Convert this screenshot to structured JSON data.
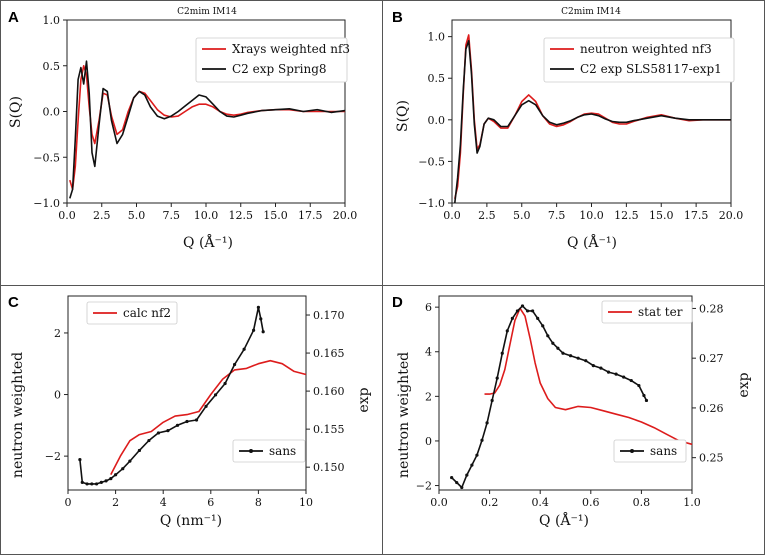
{
  "panels": [
    {
      "id": "A",
      "title": "C2mim IM14",
      "xlabel": "Q (Å⁻¹)",
      "ylabel": "S(Q)",
      "y2label": "",
      "legend_position": "upper-right"
    },
    {
      "id": "B",
      "title": "C2mim IM14",
      "xlabel": "Q (Å⁻¹)",
      "ylabel": "S(Q)",
      "y2label": "",
      "legend_position": "upper-right"
    },
    {
      "id": "C",
      "title": "",
      "xlabel": "Q (nm⁻¹)",
      "ylabel": "neutron weighted",
      "y2label": "exp",
      "legend_position": "upper-left and lower-right"
    },
    {
      "id": "D",
      "title": "",
      "xlabel": "Q (Å⁻¹)",
      "ylabel": "neutron weighted",
      "y2label": "exp",
      "legend_position": "upper-right and lower-right"
    }
  ],
  "colors": {
    "model": "#dd1c1c",
    "exp": "#111111",
    "frame": "#333333"
  },
  "chart_data": [
    {
      "type": "line",
      "panel": "A",
      "title": "C2mim IM14",
      "xlim": [
        0,
        20
      ],
      "ylim": [
        -1,
        1
      ],
      "xticks": [
        "0.0",
        "2.5",
        "5.0",
        "7.5",
        "10.0",
        "12.5",
        "15.0",
        "17.5",
        "20.0"
      ],
      "xtick_values": [
        0,
        2.5,
        5,
        7.5,
        10,
        12.5,
        15,
        17.5,
        20
      ],
      "yticks": [
        "−1.0",
        "−0.5",
        "0.0",
        "0.5",
        "1.0"
      ],
      "ytick_values": [
        -1,
        -0.5,
        0,
        0.5,
        1
      ],
      "series": [
        {
          "name": "Xrays weighted nf3",
          "color": "red",
          "x": [
            0.2,
            0.4,
            0.6,
            0.8,
            1.0,
            1.2,
            1.4,
            1.6,
            1.8,
            2.0,
            2.3,
            2.6,
            2.9,
            3.2,
            3.6,
            4.0,
            4.4,
            4.8,
            5.2,
            5.6,
            6.0,
            6.5,
            7.0,
            7.5,
            8.0,
            8.5,
            9.0,
            9.5,
            10.0,
            10.5,
            11.0,
            11.5,
            12.0,
            12.5,
            13,
            14,
            15,
            16,
            17,
            18,
            19,
            20
          ],
          "y": [
            -0.75,
            -0.85,
            -0.6,
            -0.1,
            0.35,
            0.5,
            0.4,
            0.05,
            -0.25,
            -0.35,
            -0.1,
            0.2,
            0.18,
            -0.05,
            -0.25,
            -0.2,
            0.0,
            0.15,
            0.22,
            0.2,
            0.12,
            0.02,
            -0.04,
            -0.06,
            -0.05,
            0.0,
            0.05,
            0.08,
            0.08,
            0.05,
            0.0,
            -0.03,
            -0.04,
            -0.03,
            -0.01,
            0.01,
            0.02,
            0.02,
            0.0,
            0.0,
            0.0,
            0.0
          ]
        },
        {
          "name": "C2 exp Spring8",
          "color": "black",
          "x": [
            0.2,
            0.4,
            0.6,
            0.8,
            1.0,
            1.2,
            1.4,
            1.6,
            1.8,
            2.0,
            2.3,
            2.6,
            2.9,
            3.2,
            3.6,
            4.0,
            4.4,
            4.8,
            5.2,
            5.6,
            6.0,
            6.5,
            7.0,
            7.5,
            8.0,
            8.5,
            9.0,
            9.5,
            10.0,
            10.5,
            11.0,
            11.5,
            12.0,
            12.5,
            13,
            14,
            15,
            16,
            17,
            18,
            19,
            20
          ],
          "y": [
            -0.95,
            -0.85,
            -0.3,
            0.35,
            0.48,
            0.3,
            0.55,
            0.2,
            -0.45,
            -0.6,
            -0.15,
            0.25,
            0.22,
            -0.1,
            -0.35,
            -0.25,
            -0.05,
            0.15,
            0.22,
            0.18,
            0.05,
            -0.05,
            -0.08,
            -0.05,
            0.0,
            0.06,
            0.12,
            0.18,
            0.16,
            0.08,
            0.0,
            -0.05,
            -0.06,
            -0.04,
            -0.02,
            0.01,
            0.02,
            0.03,
            0.0,
            0.02,
            -0.01,
            0.01
          ]
        }
      ]
    },
    {
      "type": "line",
      "panel": "B",
      "title": "C2mim IM14",
      "xlim": [
        0,
        20
      ],
      "ylim": [
        -1,
        1.2
      ],
      "xticks": [
        "0.0",
        "2.5",
        "5.0",
        "7.5",
        "10.0",
        "12.5",
        "15.0",
        "17.5",
        "20.0"
      ],
      "xtick_values": [
        0,
        2.5,
        5,
        7.5,
        10,
        12.5,
        15,
        17.5,
        20
      ],
      "yticks": [
        "−1.0",
        "−0.5",
        "0.0",
        "0.5",
        "1.0"
      ],
      "ytick_values": [
        -1,
        -0.5,
        0,
        0.5,
        1
      ],
      "series": [
        {
          "name": "neutron weighted nf3",
          "color": "red",
          "x": [
            0.2,
            0.4,
            0.6,
            0.8,
            1.0,
            1.2,
            1.4,
            1.6,
            1.8,
            2.0,
            2.3,
            2.6,
            3.0,
            3.5,
            4.0,
            4.5,
            5.0,
            5.5,
            6.0,
            6.5,
            7.0,
            7.5,
            8.0,
            8.5,
            9.0,
            9.5,
            10.0,
            10.5,
            11.0,
            11.5,
            12.0,
            12.5,
            13.0,
            14.0,
            15.0,
            16.0,
            17.0,
            18.0,
            19.0,
            20.0
          ],
          "y": [
            -0.95,
            -0.8,
            -0.4,
            0.3,
            0.9,
            1.02,
            0.6,
            0.0,
            -0.35,
            -0.3,
            -0.05,
            0.02,
            -0.02,
            -0.1,
            -0.1,
            0.05,
            0.22,
            0.3,
            0.22,
            0.05,
            -0.05,
            -0.08,
            -0.06,
            -0.02,
            0.03,
            0.07,
            0.08,
            0.07,
            0.02,
            -0.03,
            -0.05,
            -0.05,
            -0.02,
            0.03,
            0.06,
            0.02,
            -0.01,
            0.0,
            0.0,
            0.0
          ]
        },
        {
          "name": "C2 exp SLS58117-exp1",
          "color": "black",
          "x": [
            0.2,
            0.4,
            0.6,
            0.8,
            1.0,
            1.2,
            1.4,
            1.6,
            1.8,
            2.0,
            2.3,
            2.6,
            3.0,
            3.5,
            4.0,
            4.5,
            5.0,
            5.5,
            6.0,
            6.5,
            7.0,
            7.5,
            8.0,
            8.5,
            9.0,
            9.5,
            10.0,
            10.5,
            11.0,
            11.5,
            12.0,
            12.5,
            13.0,
            14.0,
            15.0,
            16.0,
            17.0,
            18.0,
            19.0,
            20.0
          ],
          "y": [
            -1.0,
            -0.7,
            -0.3,
            0.35,
            0.85,
            0.95,
            0.55,
            -0.05,
            -0.4,
            -0.32,
            -0.05,
            0.02,
            0.0,
            -0.08,
            -0.08,
            0.05,
            0.18,
            0.23,
            0.18,
            0.05,
            -0.03,
            -0.06,
            -0.04,
            -0.01,
            0.03,
            0.06,
            0.07,
            0.05,
            0.01,
            -0.02,
            -0.03,
            -0.03,
            -0.01,
            0.02,
            0.05,
            0.02,
            0.0,
            0.0,
            0.0,
            0.0
          ]
        }
      ]
    },
    {
      "type": "line",
      "panel": "C",
      "xlim": [
        0,
        10
      ],
      "ylim": [
        -3.1,
        3.2
      ],
      "y2lim": [
        0.147,
        0.1725
      ],
      "xticks": [
        "0",
        "2",
        "4",
        "6",
        "8",
        "10"
      ],
      "xtick_values": [
        0,
        2,
        4,
        6,
        8,
        10
      ],
      "yticks": [
        "−2",
        "0",
        "2"
      ],
      "ytick_values": [
        -2,
        0,
        2
      ],
      "y2ticks": [
        "0.150",
        "0.155",
        "0.160",
        "0.165",
        "0.170"
      ],
      "y2tick_values": [
        0.15,
        0.155,
        0.16,
        0.165,
        0.17
      ],
      "series": [
        {
          "name": "calc nf2",
          "color": "red",
          "axis": "left",
          "x": [
            1.8,
            2.2,
            2.6,
            3.0,
            3.5,
            4.0,
            4.5,
            5.0,
            5.5,
            6.0,
            6.5,
            7.0,
            7.5,
            8.0,
            8.5,
            9.0,
            9.5,
            10.0
          ],
          "y": [
            -2.6,
            -2.0,
            -1.5,
            -1.3,
            -1.2,
            -0.9,
            -0.7,
            -0.65,
            -0.55,
            0.0,
            0.5,
            0.8,
            0.85,
            1.0,
            1.1,
            1.0,
            0.75,
            0.65
          ]
        },
        {
          "name": "sans",
          "color": "black",
          "axis": "right",
          "markers": true,
          "x": [
            0.5,
            0.6,
            0.8,
            1.0,
            1.2,
            1.4,
            1.6,
            1.8,
            2.0,
            2.3,
            2.6,
            3.0,
            3.4,
            3.8,
            4.2,
            4.6,
            5.0,
            5.4,
            5.8,
            6.2,
            6.6,
            7.0,
            7.4,
            7.8,
            8.0,
            8.1,
            8.2
          ],
          "y": [
            0.151,
            0.148,
            0.1478,
            0.1478,
            0.1478,
            0.148,
            0.1482,
            0.1485,
            0.149,
            0.1498,
            0.1508,
            0.1522,
            0.1535,
            0.1545,
            0.1548,
            0.1555,
            0.156,
            0.1562,
            0.158,
            0.1595,
            0.161,
            0.1635,
            0.1655,
            0.168,
            0.171,
            0.1695,
            0.1678
          ]
        }
      ]
    },
    {
      "type": "line",
      "panel": "D",
      "xlim": [
        0,
        1.0
      ],
      "ylim": [
        -2.2,
        6.5
      ],
      "y2lim": [
        0.2435,
        0.2825
      ],
      "xticks": [
        "0.0",
        "0.2",
        "0.4",
        "0.6",
        "0.8",
        "1.0"
      ],
      "xtick_values": [
        0,
        0.2,
        0.4,
        0.6,
        0.8,
        1.0
      ],
      "yticks": [
        "−2",
        "0",
        "2",
        "4",
        "6"
      ],
      "ytick_values": [
        -2,
        0,
        2,
        4,
        6
      ],
      "y2ticks": [
        "0.25",
        "0.26",
        "0.27",
        "0.28"
      ],
      "y2tick_values": [
        0.25,
        0.26,
        0.27,
        0.28
      ],
      "series": [
        {
          "name": "stat ter",
          "color": "red",
          "axis": "left",
          "x": [
            0.18,
            0.2,
            0.22,
            0.24,
            0.26,
            0.28,
            0.3,
            0.32,
            0.34,
            0.36,
            0.38,
            0.4,
            0.43,
            0.46,
            0.5,
            0.55,
            0.6,
            0.65,
            0.7,
            0.75,
            0.8,
            0.85,
            0.9,
            0.95,
            1.0
          ],
          "y": [
            2.1,
            2.1,
            2.15,
            2.5,
            3.2,
            4.3,
            5.4,
            5.95,
            5.6,
            4.6,
            3.5,
            2.6,
            1.9,
            1.5,
            1.4,
            1.55,
            1.5,
            1.35,
            1.2,
            1.05,
            0.85,
            0.6,
            0.3,
            0.0,
            -0.15
          ]
        },
        {
          "name": "sans",
          "color": "black",
          "axis": "right",
          "markers": true,
          "x": [
            0.05,
            0.07,
            0.09,
            0.11,
            0.13,
            0.15,
            0.17,
            0.19,
            0.21,
            0.23,
            0.25,
            0.27,
            0.29,
            0.31,
            0.33,
            0.35,
            0.37,
            0.39,
            0.41,
            0.43,
            0.45,
            0.47,
            0.49,
            0.52,
            0.55,
            0.58,
            0.61,
            0.64,
            0.67,
            0.7,
            0.73,
            0.76,
            0.79,
            0.81,
            0.82
          ],
          "y": [
            0.246,
            0.245,
            0.244,
            0.2465,
            0.2485,
            0.2505,
            0.2535,
            0.257,
            0.2615,
            0.266,
            0.271,
            0.2755,
            0.278,
            0.2795,
            0.2805,
            0.2795,
            0.2795,
            0.278,
            0.2765,
            0.2745,
            0.273,
            0.272,
            0.271,
            0.2705,
            0.27,
            0.2695,
            0.2685,
            0.268,
            0.2672,
            0.2668,
            0.2662,
            0.2655,
            0.2645,
            0.2625,
            0.2615
          ]
        }
      ]
    }
  ]
}
